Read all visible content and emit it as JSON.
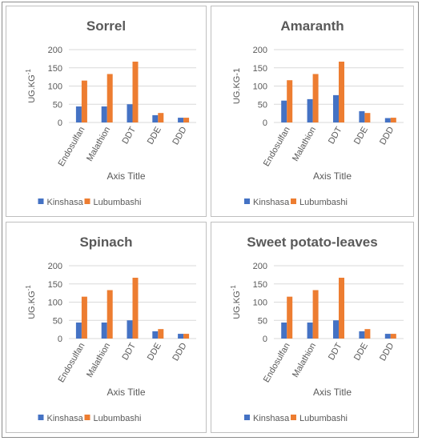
{
  "colors": {
    "kinshasa": "#4472c4",
    "lubumbashi": "#ed7d31",
    "grid": "#d9d9d9",
    "text": "#595959"
  },
  "chart_data": [
    {
      "type": "bar",
      "title": "Sorrel",
      "categories": [
        "Endosulfan",
        "Malathion",
        "DDT",
        "DDE",
        "DDD"
      ],
      "series": [
        {
          "name": "Kinshasa",
          "values": [
            44,
            44,
            50,
            20,
            13
          ]
        },
        {
          "name": "Lubumbashi",
          "values": [
            115,
            133,
            167,
            26,
            13
          ]
        }
      ],
      "xlabel": "Axis Title",
      "ylabel": "UG.KG",
      "ylabel_sup": "-1",
      "yticks": [
        "0",
        "50",
        "100",
        "150",
        "200"
      ],
      "ylim": [
        0,
        200
      ],
      "grid": true,
      "legend": "bottom"
    },
    {
      "type": "bar",
      "title": "Amaranth",
      "categories": [
        "Endosulfan",
        "Malathion",
        "DDT",
        "DDE",
        "DDD"
      ],
      "series": [
        {
          "name": "Kinshasa",
          "values": [
            60,
            64,
            75,
            31,
            12
          ]
        },
        {
          "name": "Lubumbashi",
          "values": [
            116,
            133,
            167,
            26,
            13
          ]
        }
      ],
      "xlabel": "Axis Title",
      "ylabel": "UG.KG-1",
      "ylabel_sup": "",
      "yticks": [
        "0",
        "50",
        "100",
        "150",
        "200"
      ],
      "ylim": [
        0,
        200
      ],
      "grid": true,
      "legend": "bottom"
    },
    {
      "type": "bar",
      "title": "Spinach",
      "categories": [
        "Endosulfan",
        "Malathion",
        "DDT",
        "DDE",
        "DDD"
      ],
      "series": [
        {
          "name": "Kinshasa",
          "values": [
            44,
            44,
            50,
            20,
            13
          ]
        },
        {
          "name": "Lubumbashi",
          "values": [
            115,
            133,
            167,
            26,
            13
          ]
        }
      ],
      "xlabel": "Axis Title",
      "ylabel": "UG.KG",
      "ylabel_sup": "-1",
      "yticks": [
        "0",
        "50",
        "100",
        "150",
        "200"
      ],
      "ylim": [
        0,
        200
      ],
      "grid": true,
      "legend": "bottom"
    },
    {
      "type": "bar",
      "title": "Sweet potato-leaves",
      "categories": [
        "Endosulfan",
        "Malathion",
        "DDT",
        "DDE",
        "DDD"
      ],
      "series": [
        {
          "name": "Kinshasa",
          "values": [
            44,
            44,
            50,
            20,
            13
          ]
        },
        {
          "name": "Lubumbashi",
          "values": [
            115,
            133,
            167,
            26,
            13
          ]
        }
      ],
      "xlabel": "Axis Title",
      "ylabel": "UG.KG",
      "ylabel_sup": "-1",
      "yticks": [
        "0",
        "50",
        "100",
        "150",
        "200"
      ],
      "ylim": [
        0,
        200
      ],
      "grid": true,
      "legend": "bottom"
    }
  ]
}
